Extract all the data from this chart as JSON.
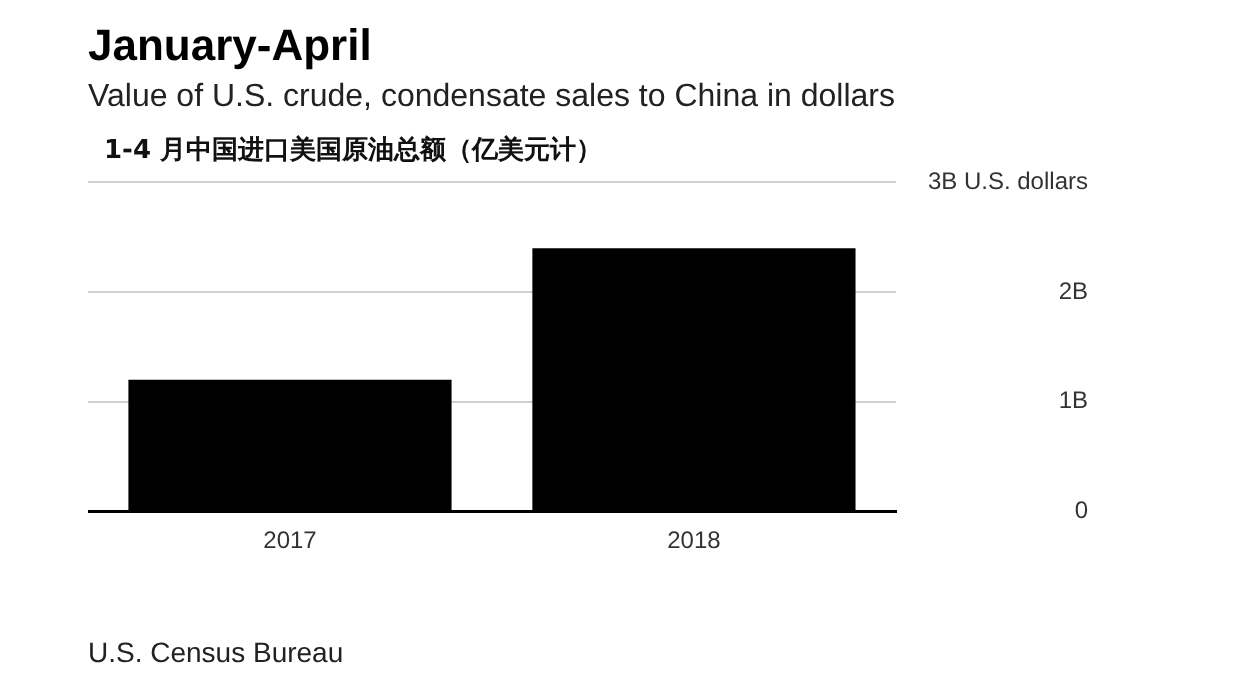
{
  "chart_data": {
    "type": "bar",
    "title": "January-April",
    "subtitle": "Value of U.S. crude, condensate sales to China in dollars",
    "categories": [
      "2017",
      "2018"
    ],
    "values": [
      1.2,
      2.4
    ],
    "color": "#000000",
    "ylim": [
      0,
      3
    ],
    "yticks": [
      0,
      {
        "value": 1,
        "label": "1B"
      },
      {
        "value": 2,
        "label": "2B"
      },
      {
        "value": 3,
        "label": "3B U.S. dollars"
      }
    ],
    "grid": "y",
    "legend": false,
    "annotations": [
      "1-4 月中国进口美国原油总额（亿美元计）",
      "U.S. Census Bureau"
    ]
  }
}
